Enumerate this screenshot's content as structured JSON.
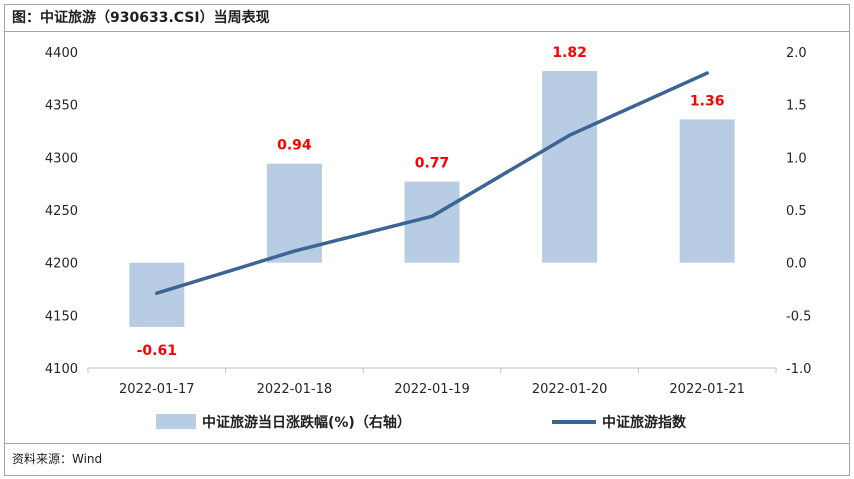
{
  "title": "图：中证旅游（930633.CSI）当周表现",
  "source": "资料来源：Wind",
  "chart_data": {
    "type": "bar+line",
    "categories": [
      "2022-01-17",
      "2022-01-18",
      "2022-01-19",
      "2022-01-20",
      "2022-01-21"
    ],
    "series": [
      {
        "name": "中证旅游当日涨跌幅(%)（右轴）",
        "type": "bar",
        "axis": "right",
        "values": [
          -0.61,
          0.94,
          0.77,
          1.82,
          1.36
        ],
        "labels": [
          "-0.61",
          "0.94",
          "0.77",
          "1.82",
          "1.36"
        ],
        "color": "#b8cce4"
      },
      {
        "name": "中证旅游指数",
        "type": "line",
        "axis": "left",
        "values": [
          4171,
          4211,
          4244,
          4321,
          4380
        ],
        "color": "#3c6494"
      }
    ],
    "y_left": {
      "min": 4100,
      "max": 4400,
      "ticks": [
        "4100",
        "4150",
        "4200",
        "4250",
        "4300",
        "4350",
        "4400"
      ]
    },
    "y_right": {
      "min": -1.0,
      "max": 2.0,
      "ticks": [
        "-1.0",
        "-0.5",
        "0.0",
        "0.5",
        "1.0",
        "1.5",
        "2.0"
      ]
    },
    "label_color": "#ff0000",
    "legend_position": "bottom",
    "grid": false
  }
}
